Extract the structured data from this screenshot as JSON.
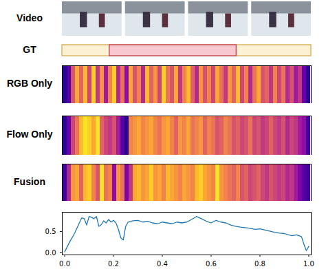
{
  "chart_data": [
    {
      "type": "image",
      "title": "Video",
      "frames": 4
    },
    {
      "type": "interval",
      "title": "GT",
      "xlim": [
        0,
        1
      ],
      "start": 0.19,
      "end": 0.7,
      "colors": [
        "#fdf1d3",
        "#f7c8cf"
      ]
    },
    {
      "type": "heatmap",
      "title": "RGB Only",
      "color": "plasma",
      "zlim": [
        0,
        1
      ],
      "tick_labels": false,
      "cells": [
        0.05,
        0.15,
        0.55,
        0.8,
        0.6,
        0.85,
        0.5,
        0.9,
        0.45,
        0.75,
        0.35,
        0.7,
        0.9,
        0.4,
        0.65,
        0.3,
        0.8,
        0.55,
        0.7,
        0.4,
        0.85,
        0.6,
        0.75,
        0.5,
        0.9,
        0.65,
        0.55,
        0.8,
        0.45,
        0.7,
        0.85,
        0.6,
        0.4,
        0.75,
        0.55,
        0.7,
        0.5,
        0.8,
        0.65,
        0.45,
        0.75,
        0.6,
        0.85,
        0.5,
        0.7,
        0.4,
        0.65,
        0.8,
        0.55,
        0.6,
        0.45,
        0.7,
        0.5,
        0.65,
        0.4,
        0.55,
        0.35,
        0.45,
        0.2,
        0.05
      ]
    },
    {
      "type": "heatmap",
      "title": "Flow Only",
      "color": "plasma",
      "zlim": [
        0,
        1
      ],
      "tick_labels": false,
      "cells": [
        0.05,
        0.2,
        0.5,
        0.65,
        0.85,
        0.95,
        0.9,
        0.8,
        0.95,
        0.6,
        0.5,
        0.45,
        0.55,
        0.35,
        0.15,
        0.05,
        0.7,
        0.75,
        0.8,
        0.7,
        0.75,
        0.8,
        0.7,
        0.65,
        0.75,
        0.8,
        0.7,
        0.6,
        0.75,
        0.7,
        0.8,
        0.65,
        0.7,
        0.75,
        0.6,
        0.7,
        0.65,
        0.55,
        0.6,
        0.7,
        0.65,
        0.55,
        0.6,
        0.5,
        0.55,
        0.65,
        0.5,
        0.55,
        0.45,
        0.5,
        0.6,
        0.5,
        0.45,
        0.55,
        0.4,
        0.5,
        0.45,
        0.35,
        0.3,
        0.1
      ]
    },
    {
      "type": "heatmap",
      "title": "Fusion",
      "color": "plasma",
      "zlim": [
        0,
        1
      ],
      "tick_labels": false,
      "cells": [
        0.1,
        0.4,
        0.75,
        0.8,
        0.6,
        0.85,
        0.9,
        0.7,
        0.55,
        0.95,
        0.65,
        0.7,
        0.3,
        0.75,
        0.65,
        0.25,
        0.45,
        0.8,
        0.85,
        0.75,
        0.8,
        0.9,
        0.75,
        0.8,
        0.7,
        0.85,
        0.8,
        0.75,
        0.7,
        0.8,
        0.75,
        0.7,
        0.85,
        0.9,
        0.8,
        0.75,
        0.7,
        0.95,
        0.75,
        0.7,
        0.65,
        0.6,
        0.7,
        0.55,
        0.6,
        0.5,
        0.55,
        0.6,
        0.5,
        0.45,
        0.55,
        0.5,
        0.45,
        0.5,
        0.4,
        0.45,
        0.35,
        0.25,
        0.15,
        0.1
      ]
    },
    {
      "type": "line",
      "color": "#1f77b4",
      "x": [
        0.0,
        0.02,
        0.04,
        0.06,
        0.07,
        0.08,
        0.09,
        0.1,
        0.11,
        0.12,
        0.13,
        0.14,
        0.15,
        0.16,
        0.17,
        0.18,
        0.19,
        0.2,
        0.21,
        0.22,
        0.23,
        0.24,
        0.25,
        0.26,
        0.28,
        0.3,
        0.32,
        0.34,
        0.36,
        0.38,
        0.4,
        0.42,
        0.44,
        0.46,
        0.48,
        0.5,
        0.52,
        0.54,
        0.56,
        0.58,
        0.6,
        0.62,
        0.64,
        0.66,
        0.68,
        0.7,
        0.72,
        0.75,
        0.78,
        0.8,
        0.83,
        0.86,
        0.88,
        0.9,
        0.93,
        0.95,
        0.97,
        0.98,
        0.99,
        1.0
      ],
      "values": [
        0.02,
        0.25,
        0.45,
        0.7,
        0.82,
        0.8,
        0.65,
        0.85,
        0.83,
        0.8,
        0.85,
        0.62,
        0.66,
        0.75,
        0.7,
        0.78,
        0.72,
        0.76,
        0.7,
        0.55,
        0.35,
        0.3,
        0.62,
        0.72,
        0.75,
        0.76,
        0.72,
        0.74,
        0.7,
        0.68,
        0.72,
        0.7,
        0.68,
        0.72,
        0.7,
        0.72,
        0.78,
        0.85,
        0.8,
        0.74,
        0.7,
        0.76,
        0.72,
        0.7,
        0.65,
        0.62,
        0.6,
        0.58,
        0.55,
        0.56,
        0.52,
        0.48,
        0.46,
        0.45,
        0.4,
        0.42,
        0.38,
        0.2,
        0.05,
        0.15
      ],
      "xlim": [
        -0.01,
        1.01
      ],
      "xticks": [
        {
          "value": 0,
          "label": "0.0"
        },
        {
          "value": 0.2,
          "label": "0.2"
        },
        {
          "value": 0.4,
          "label": "0.4"
        },
        {
          "value": 0.6,
          "label": "0.6"
        },
        {
          "value": 0.8,
          "label": "0.8"
        },
        {
          "value": 1,
          "label": "1.0"
        }
      ],
      "ylim": [
        -0.05,
        0.95
      ],
      "yticks": [
        {
          "value": 0,
          "label": "0.0"
        },
        {
          "value": 0.5,
          "label": "0.5"
        }
      ]
    }
  ]
}
